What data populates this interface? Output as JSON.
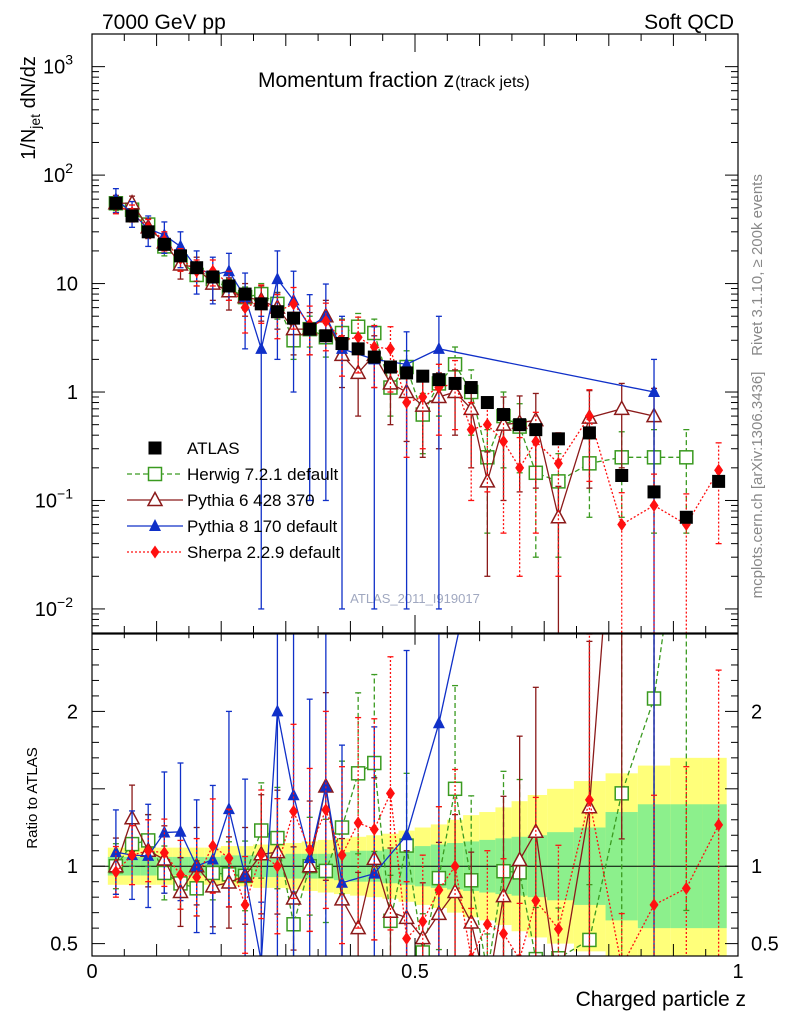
{
  "header": {
    "left": "7000 GeV pp",
    "right": "Soft QCD"
  },
  "side_text": {
    "rivet": "Rivet 3.1.10, ≥ 200k events",
    "site": "mcplots.cern.ch [arXiv:1306.3436]"
  },
  "watermark": "ATLAS_2011_I919017",
  "chart_data": {
    "type": "scatter",
    "title": "Momentum fraction z",
    "title_sub": "(track jets)",
    "xlabel": "Charged particle z",
    "ylabel": "1/N_jet dN/dz",
    "ylabel_main": "1/N",
    "ylabel_sub": "jet",
    "ylabel_tail": " dN/dz",
    "ratio_ylabel": "Ratio to ATLAS",
    "xlim": [
      0,
      1
    ],
    "ylim": [
      0.006,
      2000
    ],
    "ratio_ylim": [
      0.42,
      2.5
    ],
    "yscale": "log",
    "x_ticks": [
      "0",
      "0.5",
      "1"
    ],
    "y_ticks": [
      {
        "base": "10",
        "exp": "3",
        "value": 1000
      },
      {
        "base": "10",
        "exp": "2",
        "value": 100
      },
      {
        "base": "10",
        "exp": "",
        "value": 10
      },
      {
        "base": "1",
        "exp": "",
        "value": 1
      },
      {
        "base": "10",
        "exp": "−1",
        "value": 0.1
      },
      {
        "base": "10",
        "exp": "−2",
        "value": 0.01
      }
    ],
    "ratio_ticks": [
      {
        "label": "0.5",
        "value": 0.5
      },
      {
        "label": "1",
        "value": 1
      },
      {
        "label": "2",
        "value": 2
      }
    ],
    "legend": [
      "ATLAS",
      "Herwig 7.2.1 default",
      "Pythia 6 428 370",
      "Pythia 8 170 default",
      "Sherpa 2.2.9 default"
    ],
    "data": {
      "name": "ATLAS",
      "x": [
        0.037,
        0.062,
        0.087,
        0.112,
        0.137,
        0.162,
        0.187,
        0.212,
        0.237,
        0.262,
        0.287,
        0.312,
        0.337,
        0.362,
        0.387,
        0.412,
        0.437,
        0.462,
        0.487,
        0.512,
        0.537,
        0.562,
        0.587,
        0.612,
        0.637,
        0.662,
        0.687,
        0.722,
        0.77,
        0.82,
        0.87,
        0.92,
        0.97
      ],
      "y": [
        55,
        42,
        30,
        23,
        18,
        14,
        11.5,
        9.5,
        8.0,
        6.5,
        5.5,
        4.8,
        3.8,
        3.3,
        2.8,
        2.5,
        2.1,
        1.7,
        1.5,
        1.4,
        1.3,
        1.2,
        1.1,
        0.8,
        0.62,
        0.5,
        0.45,
        0.37,
        0.42,
        0.17,
        0.12,
        0.07,
        0.15
      ],
      "band_inner": [
        0.06,
        0.06,
        0.06,
        0.06,
        0.06,
        0.06,
        0.06,
        0.07,
        0.07,
        0.07,
        0.07,
        0.08,
        0.08,
        0.08,
        0.09,
        0.1,
        0.1,
        0.11,
        0.12,
        0.13,
        0.14,
        0.15,
        0.16,
        0.17,
        0.18,
        0.19,
        0.2,
        0.22,
        0.25,
        0.35,
        0.4,
        0.4,
        0.4
      ],
      "band_outer": [
        0.12,
        0.12,
        0.12,
        0.12,
        0.12,
        0.12,
        0.12,
        0.13,
        0.13,
        0.14,
        0.14,
        0.15,
        0.16,
        0.17,
        0.18,
        0.19,
        0.2,
        0.21,
        0.23,
        0.25,
        0.27,
        0.3,
        0.33,
        0.35,
        0.38,
        0.42,
        0.46,
        0.5,
        0.55,
        0.6,
        0.65,
        0.7,
        0.7
      ]
    },
    "series": [
      {
        "name": "Herwig 7.2.1 default",
        "color": "#3a9a20",
        "marker": "open-square",
        "dash": "5,3",
        "connect": true,
        "x": [
          0.037,
          0.062,
          0.087,
          0.112,
          0.137,
          0.162,
          0.187,
          0.212,
          0.237,
          0.262,
          0.287,
          0.312,
          0.337,
          0.362,
          0.387,
          0.412,
          0.437,
          0.462,
          0.487,
          0.512,
          0.537,
          0.562,
          0.587,
          0.612,
          0.637,
          0.662,
          0.687,
          0.722,
          0.77,
          0.82,
          0.87,
          0.92
        ],
        "y": [
          55,
          48,
          35,
          22,
          16,
          12,
          11,
          9,
          7.5,
          8,
          6.5,
          3,
          3.8,
          3.2,
          3.5,
          4,
          3.5,
          1.1,
          1.7,
          0.62,
          1.2,
          1.8,
          1.0,
          0.25,
          0.6,
          0.48,
          0.18,
          0.15,
          0.22,
          0.25,
          0.25,
          0.25
        ],
        "err": [
          8,
          6,
          5,
          4,
          3,
          2.5,
          2,
          2,
          1.8,
          2,
          1.8,
          1,
          1.2,
          1.1,
          1.2,
          1.3,
          1.2,
          0.5,
          0.7,
          0.35,
          0.6,
          0.8,
          0.6,
          0.2,
          0.4,
          0.3,
          0.15,
          0.12,
          0.15,
          0.18,
          0.2,
          0.2
        ]
      },
      {
        "name": "Pythia 6 428 370",
        "color": "#8b1a1a",
        "marker": "open-triangle",
        "dash": "",
        "connect": true,
        "x": [
          0.037,
          0.062,
          0.087,
          0.112,
          0.137,
          0.162,
          0.187,
          0.212,
          0.237,
          0.262,
          0.287,
          0.312,
          0.337,
          0.362,
          0.387,
          0.412,
          0.437,
          0.462,
          0.487,
          0.512,
          0.537,
          0.562,
          0.587,
          0.612,
          0.637,
          0.662,
          0.687,
          0.722,
          0.77,
          0.82,
          0.87
        ],
        "y": [
          55,
          55,
          33,
          24,
          15,
          14,
          10,
          8.5,
          7.5,
          7,
          6,
          3.8,
          3.8,
          5,
          2.2,
          1.5,
          2.2,
          1.2,
          1.0,
          0.75,
          0.9,
          1.0,
          0.7,
          0.15,
          0.5,
          0.52,
          0.55,
          0.07,
          0.58,
          0.7,
          0.6
        ],
        "err": [
          10,
          9,
          7,
          5,
          4,
          3.5,
          3,
          2.8,
          2.5,
          2.5,
          2.2,
          1.6,
          1.6,
          2,
          1.1,
          0.9,
          1.1,
          0.7,
          0.65,
          0.5,
          0.6,
          0.6,
          0.5,
          0.13,
          0.4,
          0.4,
          0.42,
          0.065,
          0.45,
          0.5,
          0.48
        ]
      },
      {
        "name": "Pythia 8 170 default",
        "color": "#1030c8",
        "marker": "triangle",
        "dash": "",
        "connect": true,
        "x": [
          0.037,
          0.062,
          0.087,
          0.112,
          0.137,
          0.162,
          0.187,
          0.212,
          0.237,
          0.262,
          0.287,
          0.312,
          0.337,
          0.362,
          0.387,
          0.437,
          0.487,
          0.537,
          0.87
        ],
        "y": [
          60,
          45,
          32,
          28,
          22,
          14,
          12,
          13,
          7.5,
          2.5,
          11,
          7,
          4,
          5,
          2.5,
          2,
          1.8,
          2.5,
          1.0
        ],
        "err": [
          15,
          12,
          10,
          9,
          8,
          6,
          5.5,
          6,
          5,
          2.49,
          9,
          6,
          3.9,
          4.9,
          2.49,
          1.99,
          1.79,
          2.49,
          0.999
        ]
      },
      {
        "name": "Sherpa 2.2.9 default",
        "color": "#ff1010",
        "marker": "diamond",
        "dash": "2,2",
        "connect": true,
        "x": [
          0.037,
          0.062,
          0.087,
          0.112,
          0.137,
          0.162,
          0.187,
          0.212,
          0.237,
          0.262,
          0.287,
          0.312,
          0.337,
          0.362,
          0.387,
          0.412,
          0.437,
          0.462,
          0.487,
          0.512,
          0.537,
          0.562,
          0.587,
          0.612,
          0.637,
          0.662,
          0.687,
          0.722,
          0.77,
          0.82,
          0.87,
          0.92,
          0.97
        ],
        "y": [
          53,
          45,
          33,
          25,
          17,
          13,
          13,
          10,
          6,
          7,
          5.5,
          6.5,
          4.2,
          4.5,
          3,
          3.2,
          2.6,
          2.5,
          0.8,
          0.9,
          1.1,
          1.2,
          0.45,
          0.5,
          0.35,
          0.2,
          0.35,
          0.22,
          0.6,
          0.06,
          0.09,
          0.06,
          0.19
        ],
        "err": [
          9,
          8,
          6,
          5,
          4,
          3.5,
          3.5,
          3,
          2.5,
          2.7,
          2.4,
          2.7,
          2,
          2.1,
          1.6,
          1.7,
          1.5,
          1.5,
          0.55,
          0.6,
          0.7,
          0.75,
          0.35,
          0.38,
          0.3,
          0.18,
          0.3,
          0.2,
          0.45,
          0.058,
          0.085,
          0.055,
          0.15
        ]
      }
    ]
  }
}
